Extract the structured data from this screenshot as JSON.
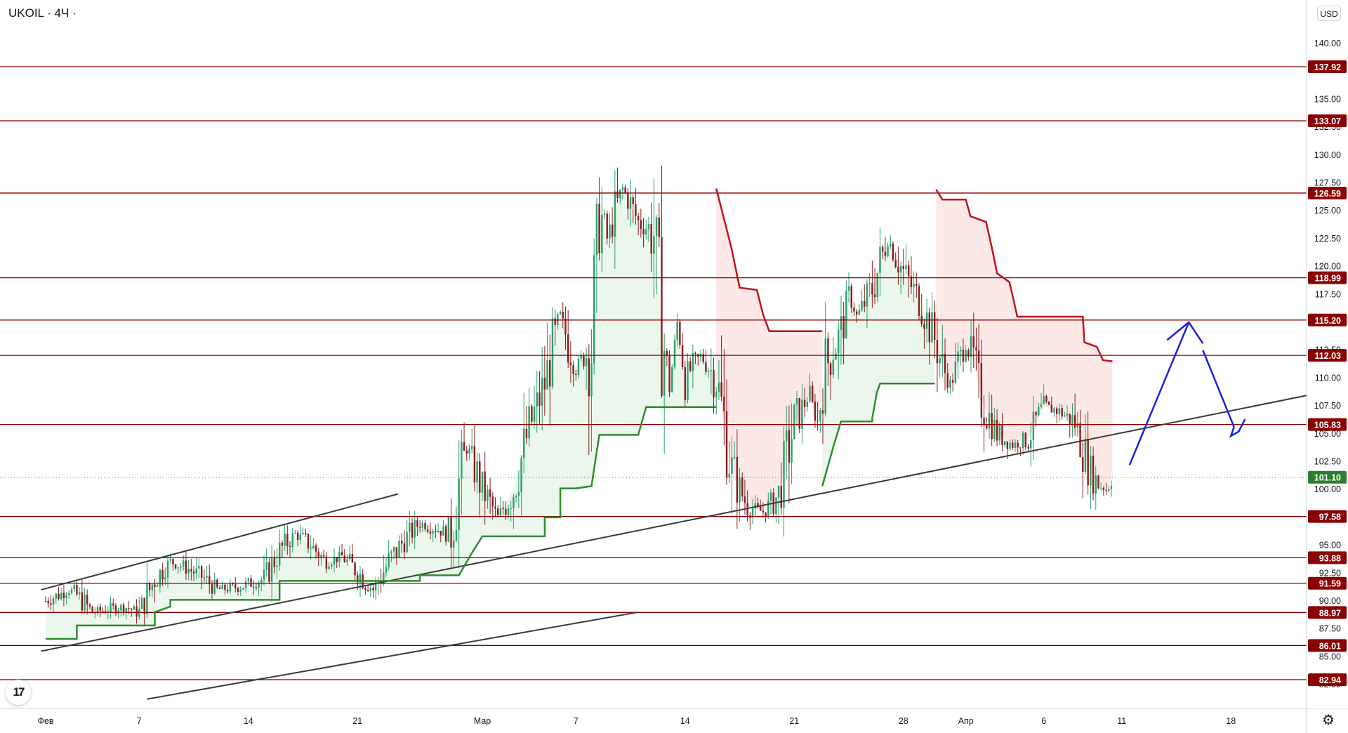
{
  "header": {
    "ticker": "UKOIL · 4Ч ·",
    "currency_button": "USD"
  },
  "icons": {
    "logo": "tradingview-logo-icon",
    "settings": "gear-icon"
  },
  "colors": {
    "level_line": "#8b0000",
    "level_badge": "#8b0000",
    "current_badge": "#2e7d32",
    "trendline": "#3a3a3a",
    "supertrend_up": "#2e8b2e",
    "supertrend_down": "#c0141a",
    "fill_up": "#e8f5e9",
    "fill_down": "#fde4e4",
    "forecast_arrow": "#1a22d8",
    "candle_up": "#26a069",
    "candle_down": "#8b1a1a"
  },
  "chart_data": {
    "type": "candlestick",
    "symbol": "UKOIL",
    "interval": "4Ч",
    "currency": "USD",
    "ylim": [
      80.3,
      141.7
    ],
    "y_ticks": [
      "140.00",
      "135.00",
      "132.50",
      "130.00",
      "127.50",
      "125.00",
      "122.50",
      "120.00",
      "117.50",
      "112.50",
      "110.00",
      "107.50",
      "105.00",
      "102.50",
      "100.00",
      "95.00",
      "92.50",
      "90.00",
      "87.50",
      "85.00",
      "82.50"
    ],
    "x_ticks": [
      {
        "label": "Фев",
        "day": 0
      },
      {
        "label": "7",
        "day": 6
      },
      {
        "label": "14",
        "day": 13
      },
      {
        "label": "21",
        "day": 20
      },
      {
        "label": "Мар",
        "day": 28
      },
      {
        "label": "7",
        "day": 34
      },
      {
        "label": "14",
        "day": 41
      },
      {
        "label": "21",
        "day": 48
      },
      {
        "label": "28",
        "day": 55
      },
      {
        "label": "Апр",
        "day": 59
      },
      {
        "label": "6",
        "day": 64
      },
      {
        "label": "11",
        "day": 69
      },
      {
        "label": "18",
        "day": 76
      }
    ],
    "levels": [
      "137.92",
      "133.07",
      "126.59",
      "118.99",
      "115.20",
      "112.03",
      "105.83",
      "97.58",
      "93.88",
      "91.59",
      "88.97",
      "86.01",
      "82.94"
    ],
    "current_price": "101.10",
    "trendlines": [
      {
        "from": [
          -0.3,
          85.5
        ],
        "to": [
          81.8,
          108.7
        ]
      },
      {
        "from": [
          -0.3,
          91.0
        ],
        "to": [
          22.6,
          99.6
        ]
      },
      {
        "from": [
          6.5,
          81.2
        ],
        "to": [
          38.0,
          89.0
        ]
      }
    ],
    "supertrend_up": [
      [
        [
          0,
          86.6
        ],
        [
          2,
          86.6
        ],
        [
          2,
          87.8
        ],
        [
          7,
          87.8
        ],
        [
          7,
          89.0
        ],
        [
          8,
          89.5
        ],
        [
          8,
          90.1
        ],
        [
          15,
          90.1
        ],
        [
          15,
          91.8
        ],
        [
          24,
          91.8
        ],
        [
          24,
          92.3
        ],
        [
          26.5,
          92.3
        ],
        [
          27.2,
          94.0
        ],
        [
          28,
          95.8
        ],
        [
          32,
          95.8
        ],
        [
          32,
          97.5
        ],
        [
          33,
          97.5
        ],
        [
          33,
          100.1
        ],
        [
          34,
          100.1
        ],
        [
          35,
          100.3
        ],
        [
          35.5,
          104.9
        ],
        [
          38,
          104.9
        ],
        [
          38.5,
          107.4
        ],
        [
          43,
          107.4
        ]
      ],
      [
        [
          49.8,
          100.3
        ],
        [
          50.5,
          103.8
        ],
        [
          51,
          106.1
        ],
        [
          53,
          106.1
        ],
        [
          53,
          106.4
        ],
        [
          53.3,
          108.7
        ],
        [
          53.5,
          109.5
        ],
        [
          57,
          109.5
        ]
      ]
    ],
    "supertrend_down": [
      [
        [
          43,
          127.0
        ],
        [
          44,
          121.5
        ],
        [
          44.5,
          118.1
        ],
        [
          45.6,
          117.9
        ],
        [
          46,
          115.7
        ],
        [
          46.4,
          114.2
        ],
        [
          49.8,
          114.2
        ]
      ],
      [
        [
          57.1,
          126.9
        ],
        [
          57.5,
          126.0
        ],
        [
          59,
          126.0
        ],
        [
          59.3,
          124.5
        ],
        [
          60.3,
          124.0
        ],
        [
          60.7,
          121.5
        ],
        [
          61,
          119.4
        ],
        [
          61.8,
          118.6
        ],
        [
          62.3,
          115.5
        ],
        [
          66.5,
          115.5
        ],
        [
          66.6,
          113.2
        ],
        [
          67.4,
          112.8
        ],
        [
          67.8,
          111.6
        ],
        [
          68.4,
          111.5
        ]
      ]
    ],
    "fill_up_regions": [
      {
        "from": 0,
        "to": 43
      },
      {
        "from": 49.8,
        "to": 57
      }
    ],
    "fill_down_regions": [
      {
        "from": 43,
        "to": 49.8
      },
      {
        "from": 57.1,
        "to": 68.4
      }
    ],
    "forecast_path": [
      [
        69.5,
        102.2
      ],
      [
        73.3,
        115.0
      ],
      [
        74.2,
        112.5
      ],
      [
        76.2,
        105.6
      ],
      [
        76.0,
        104.8
      ],
      [
        76.5,
        105.2
      ],
      [
        76.9,
        106.3
      ]
    ],
    "price_anchors": [
      [
        0,
        90.0
      ],
      [
        1.5,
        91.0
      ],
      [
        2,
        90.5
      ],
      [
        3,
        89.0
      ],
      [
        5,
        89.5
      ],
      [
        6,
        89.0
      ],
      [
        7,
        92.0
      ],
      [
        8,
        93.5
      ],
      [
        9,
        93.0
      ],
      [
        10,
        92.2
      ],
      [
        11,
        91.0
      ],
      [
        12.5,
        91.3
      ],
      [
        14,
        92.0
      ],
      [
        15,
        94.5
      ],
      [
        16,
        96.0
      ],
      [
        17,
        95.0
      ],
      [
        18,
        93.5
      ],
      [
        19,
        94.0
      ],
      [
        20,
        92.6
      ],
      [
        21,
        91.0
      ],
      [
        22,
        93.5
      ],
      [
        23,
        95.5
      ],
      [
        24,
        97.0
      ],
      [
        25,
        96.5
      ],
      [
        26,
        96.0
      ],
      [
        26.5,
        100.5
      ],
      [
        27,
        104.0
      ],
      [
        28,
        100.0
      ],
      [
        29,
        97.5
      ],
      [
        30,
        100.0
      ],
      [
        31,
        105.5
      ],
      [
        32,
        109.5
      ],
      [
        33,
        115.5
      ],
      [
        34,
        111.0
      ],
      [
        35,
        113.0
      ],
      [
        35.5,
        125.0
      ],
      [
        36,
        122.5
      ],
      [
        37,
        127.0
      ],
      [
        38,
        124.0
      ],
      [
        39,
        123.0
      ],
      [
        39.5,
        114.5
      ],
      [
        40,
        109.0
      ],
      [
        40.5,
        115.0
      ],
      [
        41,
        110.0
      ],
      [
        42,
        112.0
      ],
      [
        43,
        110.0
      ],
      [
        43.5,
        106.0
      ],
      [
        44,
        101.5
      ],
      [
        45,
        98.5
      ],
      [
        46,
        98.0
      ],
      [
        47,
        99.5
      ],
      [
        48,
        106.0
      ],
      [
        49,
        108.5
      ],
      [
        49.5,
        106.0
      ],
      [
        50,
        111.0
      ],
      [
        51,
        114.0
      ],
      [
        51.5,
        117.5
      ],
      [
        52,
        115.5
      ],
      [
        53,
        118.0
      ],
      [
        54,
        122.5
      ],
      [
        55,
        119.5
      ],
      [
        56,
        117.0
      ],
      [
        57,
        113.5
      ],
      [
        57.5,
        111.0
      ],
      [
        58,
        109.5
      ],
      [
        59,
        113.0
      ],
      [
        59.5,
        111.5
      ],
      [
        60,
        108.0
      ],
      [
        61,
        105.0
      ],
      [
        62,
        104.0
      ],
      [
        63,
        104.5
      ],
      [
        64,
        107.5
      ],
      [
        65,
        107.0
      ],
      [
        66,
        106.0
      ],
      [
        67,
        101.5
      ],
      [
        67.5,
        100.5
      ],
      [
        68,
        100.0
      ],
      [
        68.4,
        101.1
      ]
    ]
  }
}
